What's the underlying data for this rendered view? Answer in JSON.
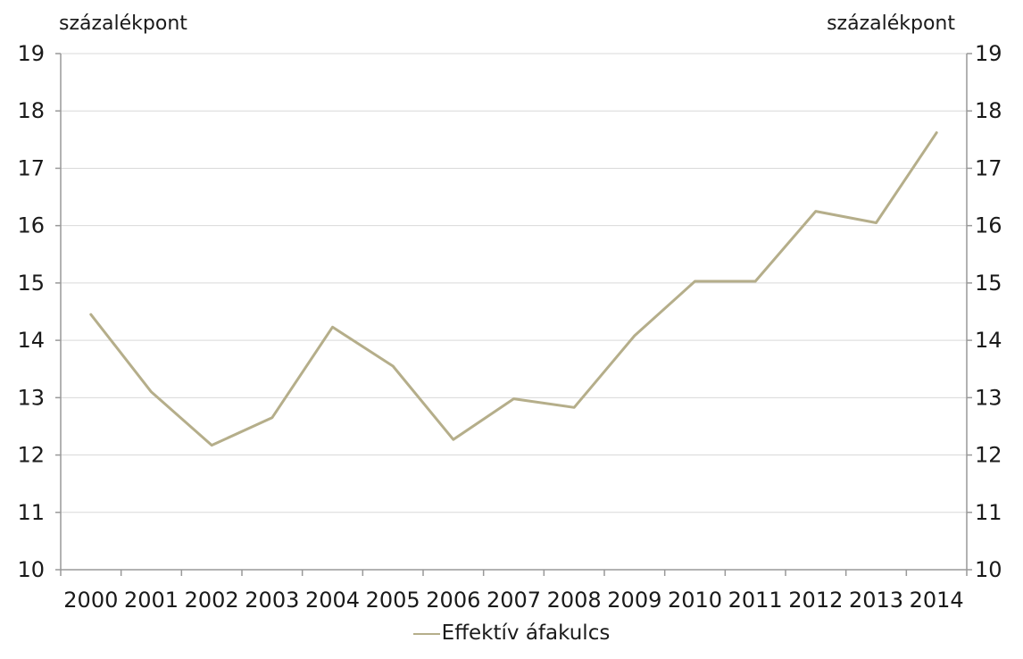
{
  "chart_data": {
    "type": "line",
    "title": "",
    "ylabel_left": "százalékpont",
    "ylabel_right": "százalékpont",
    "ylim": [
      10,
      19
    ],
    "yticks": [
      10,
      11,
      12,
      13,
      14,
      15,
      16,
      17,
      18,
      19
    ],
    "categories": [
      "2000",
      "2001",
      "2002",
      "2003",
      "2004",
      "2005",
      "2006",
      "2007",
      "2008",
      "2009",
      "2010",
      "2011",
      "2012",
      "2013",
      "2014"
    ],
    "series": [
      {
        "name": "Effektív áfakulcs",
        "color": "#b5ae8a",
        "values": [
          14.45,
          13.1,
          12.17,
          12.65,
          14.23,
          13.55,
          12.27,
          12.98,
          12.83,
          14.08,
          15.03,
          15.03,
          16.25,
          16.05,
          17.62
        ]
      }
    ],
    "grid": true,
    "legend_position": "bottom-center"
  }
}
